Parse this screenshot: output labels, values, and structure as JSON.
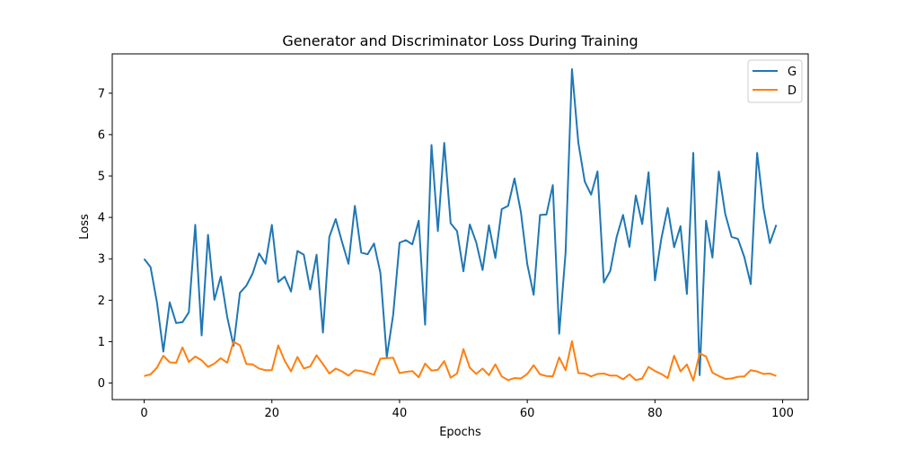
{
  "chart_data": {
    "type": "line",
    "title": "Generator and Discriminator Loss During Training",
    "xlabel": "Epochs",
    "ylabel": "Loss",
    "xlim": [
      -5,
      104
    ],
    "ylim": [
      -0.4,
      7.95
    ],
    "xticks": [
      0,
      20,
      40,
      60,
      80,
      100
    ],
    "yticks": [
      0,
      1,
      2,
      3,
      4,
      5,
      6,
      7
    ],
    "grid": false,
    "legend_position": "top-right",
    "x": [
      0,
      1,
      2,
      3,
      4,
      5,
      6,
      7,
      8,
      9,
      10,
      11,
      12,
      13,
      14,
      15,
      16,
      17,
      18,
      19,
      20,
      21,
      22,
      23,
      24,
      25,
      26,
      27,
      28,
      29,
      30,
      31,
      32,
      33,
      34,
      35,
      36,
      37,
      38,
      39,
      40,
      41,
      42,
      43,
      44,
      45,
      46,
      47,
      48,
      49,
      50,
      51,
      52,
      53,
      54,
      55,
      56,
      57,
      58,
      59,
      60,
      61,
      62,
      63,
      64,
      65,
      66,
      67,
      68,
      69,
      70,
      71,
      72,
      73,
      74,
      75,
      76,
      77,
      78,
      79,
      80,
      81,
      82,
      83,
      84,
      85,
      86,
      87,
      88,
      89,
      90,
      91,
      92,
      93,
      94,
      95,
      96,
      97,
      98,
      99
    ],
    "series": [
      {
        "name": "G",
        "color": "#1f77b4",
        "values": [
          3.0,
          2.8,
          1.95,
          0.76,
          1.95,
          1.45,
          1.47,
          1.71,
          3.82,
          1.15,
          3.58,
          2.01,
          2.57,
          1.6,
          0.9,
          2.18,
          2.35,
          2.65,
          3.13,
          2.88,
          3.82,
          2.44,
          2.57,
          2.21,
          3.19,
          3.1,
          2.26,
          3.1,
          1.22,
          3.53,
          3.96,
          3.4,
          2.88,
          4.28,
          3.15,
          3.11,
          3.37,
          2.66,
          0.63,
          1.65,
          3.39,
          3.45,
          3.35,
          3.92,
          1.41,
          5.75,
          3.67,
          5.8,
          3.86,
          3.67,
          2.7,
          3.83,
          3.4,
          2.73,
          3.81,
          3.02,
          4.2,
          4.28,
          4.94,
          4.13,
          2.87,
          2.13,
          4.06,
          4.07,
          4.78,
          1.19,
          3.15,
          7.58,
          5.8,
          4.87,
          4.55,
          5.11,
          2.43,
          2.71,
          3.53,
          4.06,
          3.29,
          4.53,
          3.84,
          5.09,
          2.48,
          3.49,
          4.23,
          3.28,
          3.79,
          2.15,
          5.56,
          0.19,
          3.92,
          3.03,
          5.11,
          4.09,
          3.53,
          3.48,
          3.04,
          2.39,
          5.56,
          4.22,
          3.38,
          3.82
        ]
      },
      {
        "name": "D",
        "color": "#ff7f0e",
        "values": [
          0.17,
          0.21,
          0.37,
          0.66,
          0.5,
          0.49,
          0.86,
          0.51,
          0.64,
          0.55,
          0.39,
          0.47,
          0.6,
          0.49,
          1.0,
          0.91,
          0.46,
          0.45,
          0.35,
          0.31,
          0.31,
          0.91,
          0.54,
          0.28,
          0.63,
          0.35,
          0.4,
          0.67,
          0.46,
          0.23,
          0.35,
          0.28,
          0.18,
          0.31,
          0.29,
          0.25,
          0.2,
          0.59,
          0.6,
          0.61,
          0.24,
          0.27,
          0.29,
          0.14,
          0.47,
          0.3,
          0.32,
          0.53,
          0.13,
          0.23,
          0.82,
          0.37,
          0.22,
          0.35,
          0.19,
          0.45,
          0.16,
          0.07,
          0.12,
          0.11,
          0.22,
          0.43,
          0.21,
          0.17,
          0.16,
          0.62,
          0.31,
          1.01,
          0.24,
          0.23,
          0.16,
          0.22,
          0.23,
          0.18,
          0.18,
          0.09,
          0.21,
          0.07,
          0.11,
          0.39,
          0.29,
          0.22,
          0.12,
          0.66,
          0.28,
          0.45,
          0.06,
          0.72,
          0.64,
          0.25,
          0.17,
          0.1,
          0.11,
          0.15,
          0.16,
          0.31,
          0.28,
          0.22,
          0.23,
          0.17
        ]
      }
    ]
  }
}
